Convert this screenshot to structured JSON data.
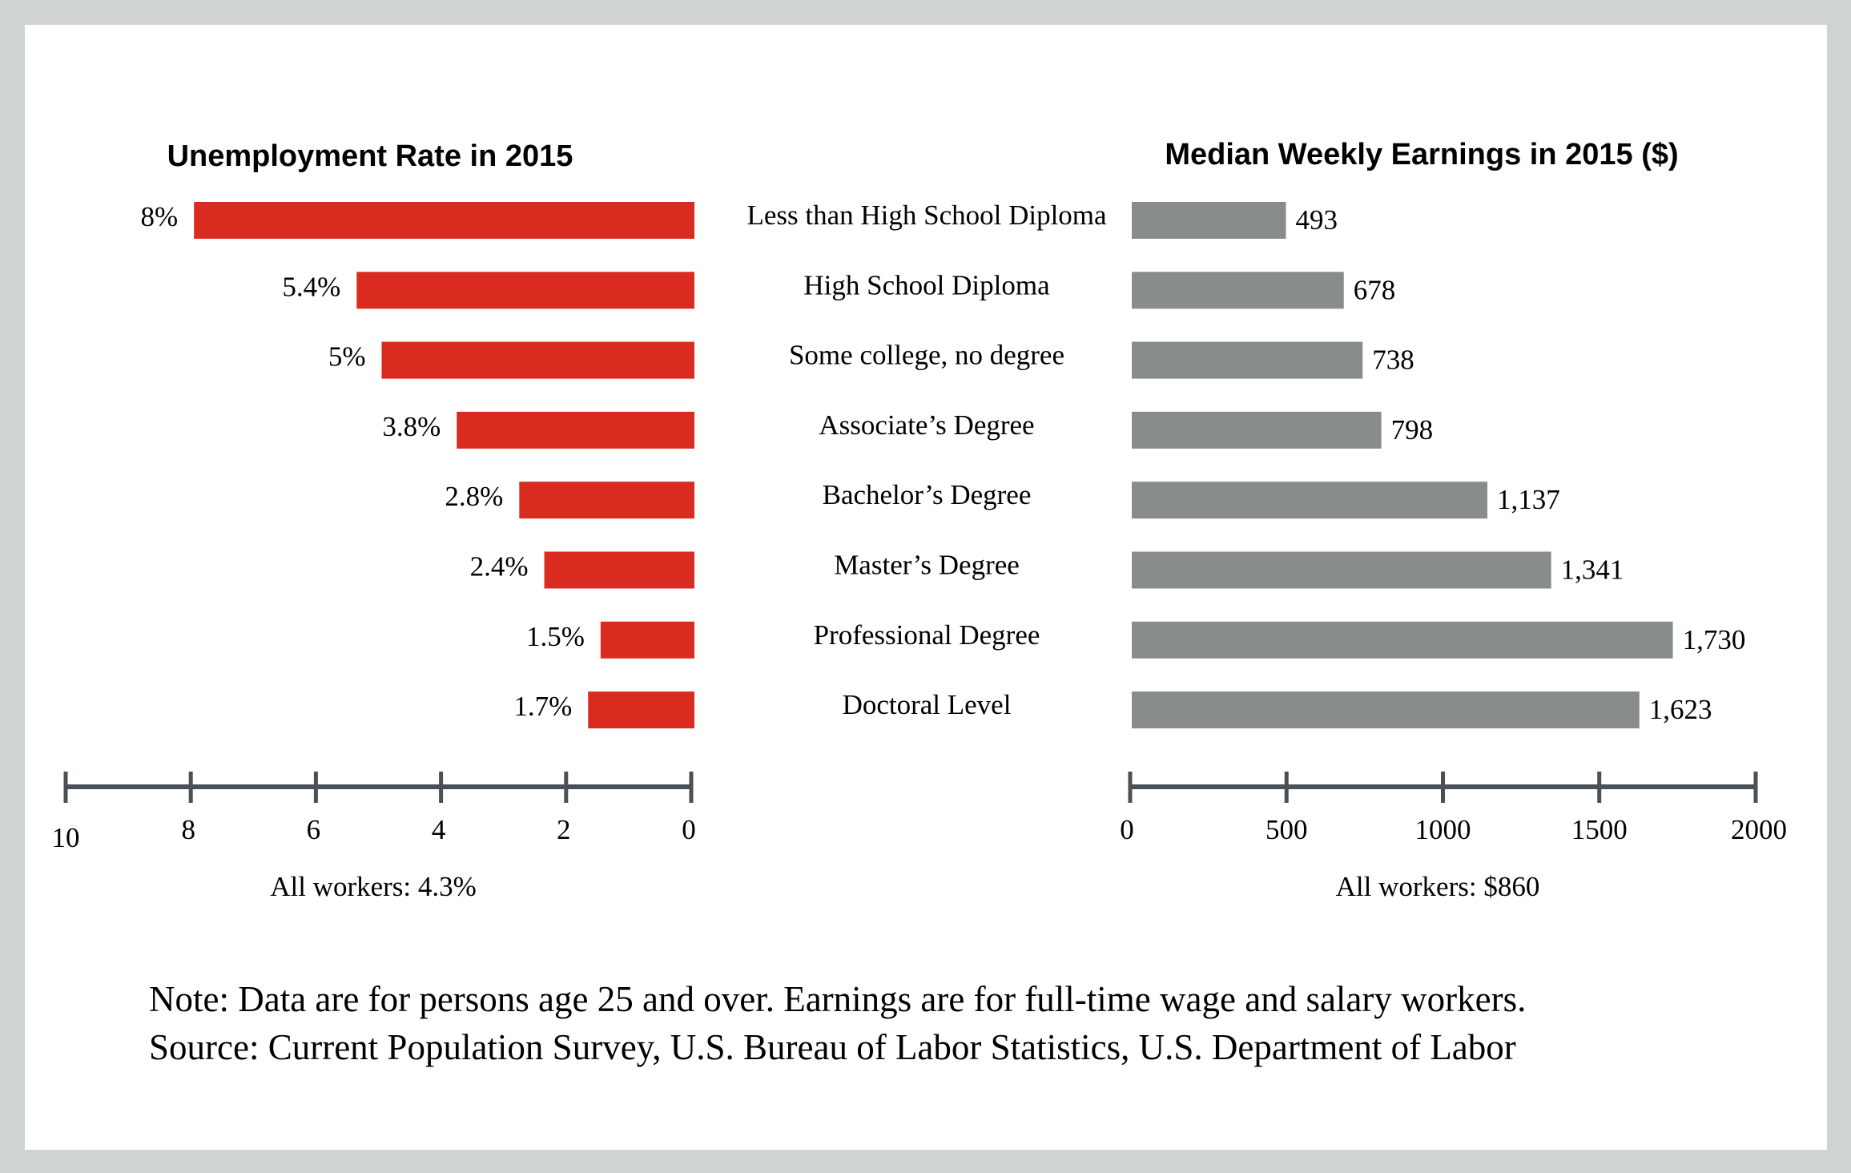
{
  "chart_data": [
    {
      "type": "bar",
      "orientation": "horizontal",
      "direction": "right-to-left",
      "title": "Unemployment Rate in 2015",
      "categories": [
        "Less than High School Diploma",
        "High School Diploma",
        "Some college, no degree",
        "Associate's Degree",
        "Bachelor's Degree",
        "Master's Degree",
        "Professional Degree",
        "Doctoral Level"
      ],
      "values": [
        8,
        5.4,
        5,
        3.8,
        2.8,
        2.4,
        1.5,
        1.7
      ],
      "value_labels": [
        "8%",
        "5.4%",
        "5%",
        "3.8%",
        "2.8%",
        "2.4%",
        "1.5%",
        "1.7%"
      ],
      "xlim": [
        0,
        10
      ],
      "ticks": [
        10,
        8,
        6,
        4,
        2,
        0
      ],
      "tick_labels": [
        "10",
        "8",
        "6",
        "4",
        "2",
        "0"
      ],
      "footer": "All workers: 4.3%",
      "all_workers": 4.3,
      "color": "#d92b1f",
      "grid": false
    },
    {
      "type": "bar",
      "orientation": "horizontal",
      "direction": "left-to-right",
      "title": "Median Weekly Earnings in 2015 ($)",
      "categories": [
        "Less than High School Diploma",
        "High School Diploma",
        "Some college, no degree",
        "Associate's Degree",
        "Bachelor's Degree",
        "Master's Degree",
        "Professional Degree",
        "Doctoral Level"
      ],
      "values": [
        493,
        678,
        738,
        798,
        1137,
        1341,
        1730,
        1623
      ],
      "value_labels": [
        "493",
        "678",
        "738",
        "798",
        "1,137",
        "1,341",
        "1,730",
        "1,623"
      ],
      "xlim": [
        0,
        2000
      ],
      "ticks": [
        0,
        500,
        1000,
        1500,
        2000
      ],
      "tick_labels": [
        "0",
        "500",
        "1000",
        "1500",
        "2000"
      ],
      "footer": "All workers: $860",
      "all_workers": 860,
      "color": "#898c8d",
      "grid": false
    }
  ],
  "category_labels": [
    "Less than High School Diploma",
    "High School Diploma",
    "Some college, no degree",
    "Associate’s Degree",
    "Bachelor’s Degree",
    "Master’s Degree",
    "Professional Degree",
    "Doctoral Level"
  ],
  "notes": {
    "line1": "Note: Data are for persons age 25 and over. Earnings are for full-time wage and salary workers.",
    "line2": "Source: Current Population Survey, U.S. Bureau of Labor Statistics, U.S. Department of Labor"
  },
  "colors": {
    "background": "#d0d3d4",
    "panel": "#ffffff",
    "axis": "#4a5055",
    "unemployment": "#d92b1f",
    "earnings": "#898c8d"
  }
}
